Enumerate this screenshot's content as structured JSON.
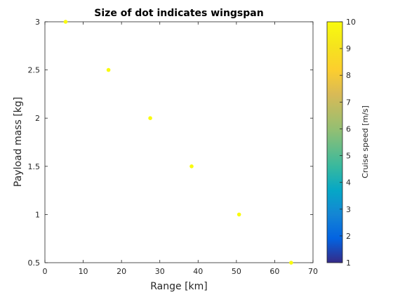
{
  "chart_data": {
    "type": "scatter",
    "title": "Size of dot indicates wingspan",
    "xlabel": "Range [km]",
    "ylabel": "Payload mass [kg]",
    "xlim": [
      0,
      70
    ],
    "ylim": [
      0.5,
      3
    ],
    "xticks": [
      "0",
      "10",
      "20",
      "30",
      "40",
      "50",
      "60",
      "70"
    ],
    "yticks": [
      "0.5",
      "1",
      "1.5",
      "2",
      "2.5",
      "3"
    ],
    "grid": false,
    "colorbar": {
      "label": "Cruise speed [m/s]",
      "range": [
        1,
        10
      ],
      "ticks": [
        "1",
        "2",
        "3",
        "4",
        "5",
        "6",
        "7",
        "8",
        "9",
        "10"
      ]
    },
    "points": [
      {
        "x": 5.4,
        "y": 3.0,
        "cruise_speed": 10
      },
      {
        "x": 16.6,
        "y": 2.5,
        "cruise_speed": 10
      },
      {
        "x": 27.5,
        "y": 2.0,
        "cruise_speed": 10
      },
      {
        "x": 38.3,
        "y": 1.5,
        "cruise_speed": 10
      },
      {
        "x": 50.7,
        "y": 1.0,
        "cruise_speed": 10
      },
      {
        "x": 64.3,
        "y": 0.5,
        "cruise_speed": 10
      }
    ],
    "marker_color": "#f9fb0e"
  }
}
